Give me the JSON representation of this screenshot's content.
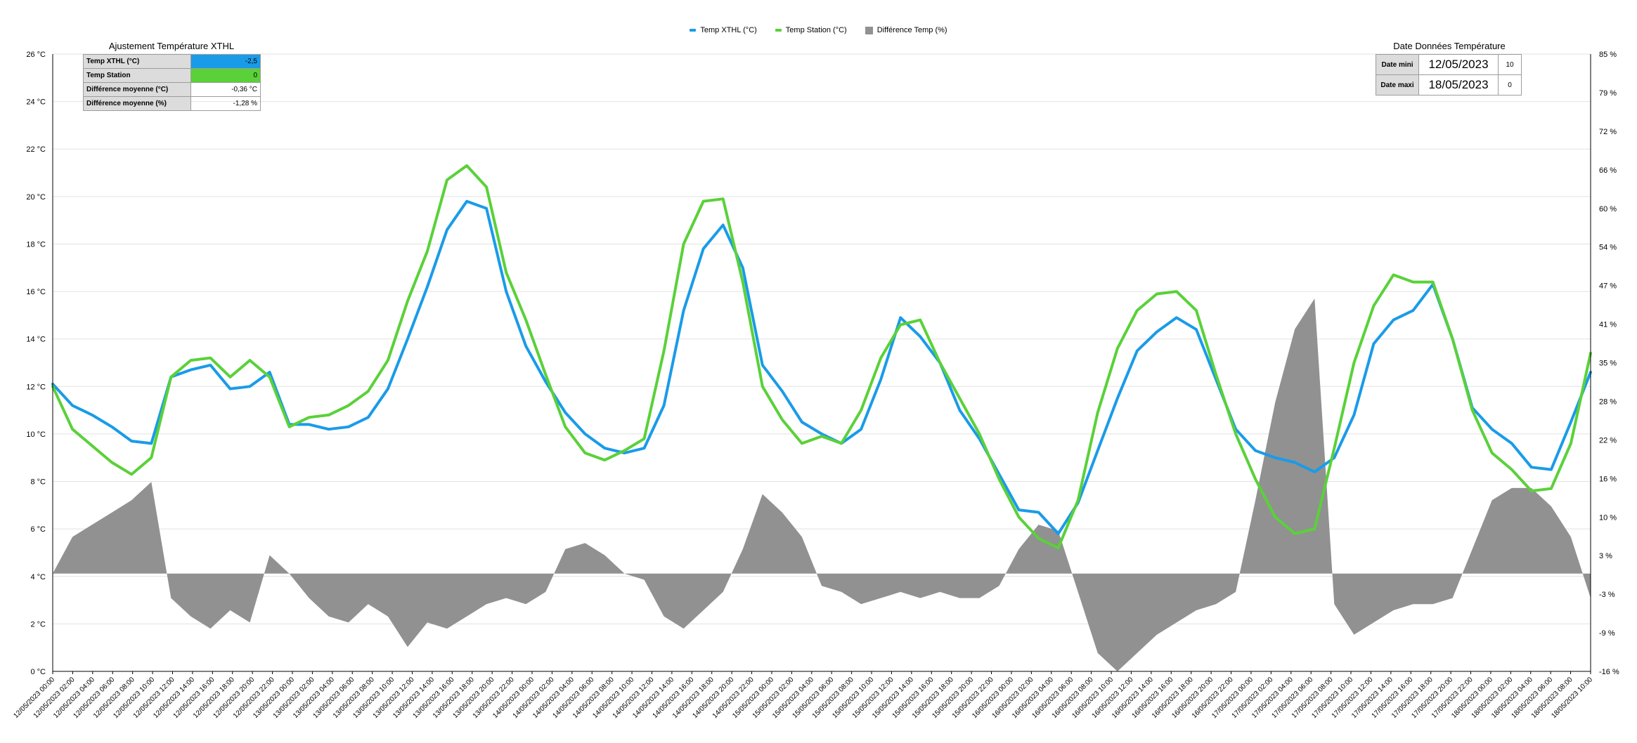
{
  "legend": {
    "items": [
      {
        "label": "Temp XTHL (°C)",
        "color": "#1a9be8",
        "kind": "line"
      },
      {
        "label": "Temp Station (°C)",
        "color": "#5ad139",
        "kind": "line"
      },
      {
        "label": "Différence Temp (%)",
        "color": "#919191",
        "kind": "area"
      }
    ]
  },
  "adjust_panel": {
    "title": "Ajustement Température XTHL",
    "rows": [
      {
        "label": "Temp XTHL (°C)",
        "value": "-2,5",
        "bg": "#1a9be8"
      },
      {
        "label": "Temp Station",
        "value": "0",
        "bg": "#5ad139"
      },
      {
        "label": "Différence moyenne (°C)",
        "value": "-0,36 °C",
        "bg": "#ffffff"
      },
      {
        "label": "Différence moyenne (%)",
        "value": "-1,28 %",
        "bg": "#ffffff"
      }
    ]
  },
  "date_panel": {
    "title": "Date Données Température",
    "rows": [
      {
        "label": "Date mini",
        "value": "12/05/2023",
        "num": "10"
      },
      {
        "label": "Date maxi",
        "value": "18/05/2023",
        "num": "0"
      }
    ]
  },
  "chart_data": {
    "type": "line",
    "x_labels": [
      "12/05/2023 00:00",
      "12/05/2023 02:00",
      "12/05/2023 04:00",
      "12/05/2023 06:00",
      "12/05/2023 08:00",
      "12/05/2023 10:00",
      "12/05/2023 12:00",
      "12/05/2023 14:00",
      "12/05/2023 16:00",
      "12/05/2023 18:00",
      "12/05/2023 20:00",
      "12/05/2023 22:00",
      "13/05/2023 00:00",
      "13/05/2023 02:00",
      "13/05/2023 04:00",
      "13/05/2023 06:00",
      "13/05/2023 08:00",
      "13/05/2023 10:00",
      "13/05/2023 12:00",
      "13/05/2023 14:00",
      "13/05/2023 16:00",
      "13/05/2023 18:00",
      "13/05/2023 20:00",
      "13/05/2023 22:00",
      "14/05/2023 00:00",
      "14/05/2023 02:00",
      "14/05/2023 04:00",
      "14/05/2023 06:00",
      "14/05/2023 08:00",
      "14/05/2023 10:00",
      "14/05/2023 12:00",
      "14/05/2023 14:00",
      "14/05/2023 16:00",
      "14/05/2023 18:00",
      "14/05/2023 20:00",
      "14/05/2023 22:00",
      "15/05/2023 00:00",
      "15/05/2023 02:00",
      "15/05/2023 04:00",
      "15/05/2023 06:00",
      "15/05/2023 08:00",
      "15/05/2023 10:00",
      "15/05/2023 12:00",
      "15/05/2023 14:00",
      "15/05/2023 16:00",
      "15/05/2023 18:00",
      "15/05/2023 20:00",
      "15/05/2023 22:00",
      "16/05/2023 00:00",
      "16/05/2023 02:00",
      "16/05/2023 04:00",
      "16/05/2023 06:00",
      "16/05/2023 08:00",
      "16/05/2023 10:00",
      "16/05/2023 12:00",
      "16/05/2023 14:00",
      "16/05/2023 16:00",
      "16/05/2023 18:00",
      "16/05/2023 20:00",
      "16/05/2023 22:00",
      "17/05/2023 00:00",
      "17/05/2023 02:00",
      "17/05/2023 04:00",
      "17/05/2023 06:00",
      "17/05/2023 08:00",
      "17/05/2023 10:00",
      "17/05/2023 12:00",
      "17/05/2023 14:00",
      "17/05/2023 16:00",
      "17/05/2023 18:00",
      "17/05/2023 20:00",
      "17/05/2023 22:00",
      "18/05/2023 00:00",
      "18/05/2023 02:00",
      "18/05/2023 04:00",
      "18/05/2023 06:00",
      "18/05/2023 08:00",
      "18/05/2023 10:00"
    ],
    "y_left": {
      "ticks": [
        "0 °C",
        "2 °C",
        "4 °C",
        "6 °C",
        "8 °C",
        "10 °C",
        "12 °C",
        "14 °C",
        "16 °C",
        "18 °C",
        "20 °C",
        "22 °C",
        "24 °C",
        "26 °C"
      ],
      "range": [
        0,
        26
      ]
    },
    "y_right": {
      "ticks": [
        "-16 %",
        "-9 %",
        "-3 %",
        "3 %",
        "10 %",
        "16 %",
        "22 %",
        "28 %",
        "35 %",
        "41 %",
        "47 %",
        "54 %",
        "60 %",
        "66 %",
        "72 %",
        "79 %",
        "85 %"
      ],
      "range": [
        -16,
        85
      ]
    },
    "grid": true,
    "legend_position": "top-center",
    "series": [
      {
        "name": "Temp XTHL (°C)",
        "axis": "left",
        "color": "#1a9be8",
        "values": [
          12.1,
          11.2,
          10.8,
          10.3,
          9.7,
          9.6,
          12.4,
          12.7,
          12.9,
          11.9,
          12.0,
          12.6,
          10.4,
          10.4,
          10.2,
          10.3,
          10.7,
          11.9,
          14.0,
          16.2,
          18.6,
          19.8,
          19.5,
          16.0,
          13.7,
          12.2,
          10.9,
          10.0,
          9.4,
          9.2,
          9.4,
          11.2,
          15.2,
          17.8,
          18.8,
          17.0,
          12.9,
          11.8,
          10.5,
          10.0,
          9.6,
          10.2,
          12.3,
          14.9,
          14.1,
          13.0,
          11.0,
          9.8,
          8.3,
          6.8,
          6.7,
          5.8,
          7.1,
          9.3,
          11.5,
          13.5,
          14.3,
          14.9,
          14.4,
          12.3,
          10.2,
          9.3,
          9.0,
          8.8,
          8.4,
          9.0,
          10.8,
          13.8,
          14.8,
          15.2,
          16.3,
          14.0,
          11.1,
          10.2,
          9.6,
          8.6,
          8.5,
          10.5,
          12.6
        ]
      },
      {
        "name": "Temp Station (°C)",
        "axis": "left",
        "color": "#5ad139",
        "values": [
          12.0,
          10.2,
          9.5,
          8.8,
          8.3,
          9.0,
          12.4,
          13.1,
          13.2,
          12.4,
          13.1,
          12.4,
          10.3,
          10.7,
          10.8,
          11.2,
          11.8,
          13.1,
          15.6,
          17.7,
          20.7,
          21.3,
          20.4,
          16.8,
          14.8,
          12.5,
          10.3,
          9.2,
          8.9,
          9.3,
          9.8,
          13.5,
          18.0,
          19.8,
          19.9,
          16.4,
          12.0,
          10.6,
          9.6,
          9.9,
          9.6,
          11.0,
          13.2,
          14.6,
          14.8,
          13.0,
          11.5,
          10.0,
          8.1,
          6.5,
          5.6,
          5.2,
          7.2,
          10.9,
          13.6,
          15.2,
          15.9,
          16.0,
          15.2,
          12.5,
          10.0,
          8.1,
          6.5,
          5.8,
          6.0,
          9.4,
          13.0,
          15.4,
          16.7,
          16.4,
          16.4,
          14.0,
          11.0,
          9.2,
          8.5,
          7.6,
          7.7,
          9.6,
          13.4
        ]
      },
      {
        "name": "Différence Temp (%)",
        "axis": "right",
        "color": "#919191",
        "type": "area",
        "values": [
          0,
          6,
          8,
          10,
          12,
          15,
          -4,
          -7,
          -9,
          -6,
          -8,
          3,
          0,
          -4,
          -7,
          -8,
          -5,
          -7,
          -12,
          -8,
          -9,
          -7,
          -5,
          -4,
          -5,
          -3,
          4,
          5,
          3,
          0,
          -1,
          -7,
          -9,
          -6,
          -3,
          4,
          13,
          10,
          6,
          -2,
          -3,
          -5,
          -4,
          -3,
          -4,
          -3,
          -4,
          -4,
          -2,
          4,
          8,
          7,
          -3,
          -13,
          -16,
          -13,
          -10,
          -8,
          -6,
          -5,
          -3,
          12,
          28,
          40,
          45,
          -5,
          -10,
          -8,
          -6,
          -5,
          -5,
          -4,
          4,
          12,
          14,
          14,
          11,
          6,
          -4
        ]
      }
    ]
  }
}
